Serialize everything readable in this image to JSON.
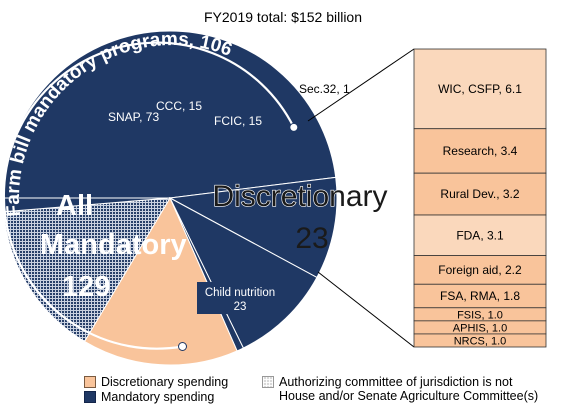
{
  "chart_data": {
    "type": "pie",
    "title": "FY2019 total: $152 billion",
    "colors": {
      "mandatory": "#1f3864",
      "discretionary": "#f9c49b",
      "hatch_background": "#d9d9d9"
    },
    "pie": {
      "slices": [
        {
          "name": "SNAP",
          "value": 73,
          "label": "SNAP, 73",
          "category": "mandatory",
          "hatched": false
        },
        {
          "name": "CCC",
          "value": 15,
          "label": "CCC, 15",
          "category": "mandatory",
          "hatched": false
        },
        {
          "name": "FCIC",
          "value": 15,
          "label": "FCIC, 15",
          "category": "mandatory",
          "hatched": false
        },
        {
          "name": "Sec.32",
          "value": 1,
          "label": "Sec.32, 1",
          "category": "mandatory",
          "hatched": false
        },
        {
          "name": "Discretionary",
          "value": 23,
          "label": "Discretionary",
          "value_label": "23",
          "category": "discretionary",
          "hatched": false
        },
        {
          "name": "Child nutrition",
          "value": 23,
          "label": "Child nutrition",
          "value_label": "23",
          "category": "mandatory",
          "hatched": true
        },
        {
          "name": "Other mandatory",
          "value": 2,
          "label": "",
          "category": "mandatory",
          "hatched": false
        }
      ]
    },
    "annotations": {
      "farm_bill": "Farm bill mandatory programs, 106",
      "all_mandatory_line1": "All",
      "all_mandatory_line2": "Mandatory",
      "all_mandatory_value": "129"
    },
    "bar": {
      "type": "stacked-bar",
      "segments": [
        {
          "label": "WIC, CSFP, 6.1",
          "value": 6.1,
          "hatched": true
        },
        {
          "label": "Research, 3.4",
          "value": 3.4,
          "hatched": false
        },
        {
          "label": "Rural Dev., 3.2",
          "value": 3.2,
          "hatched": false
        },
        {
          "label": "FDA, 3.1",
          "value": 3.1,
          "hatched": true
        },
        {
          "label": "Foreign aid, 2.2",
          "value": 2.2,
          "hatched": false
        },
        {
          "label": "FSA, RMA, 1.8",
          "value": 1.8,
          "hatched": false
        },
        {
          "label": "FSIS, 1.0",
          "value": 1.0,
          "hatched": false
        },
        {
          "label": "APHIS, 1.0",
          "value": 1.0,
          "hatched": false
        },
        {
          "label": "NRCS, 1.0",
          "value": 1.0,
          "hatched": false
        }
      ]
    },
    "legend": {
      "discretionary": "Discretionary spending",
      "mandatory": "Mandatory spending",
      "hatch_line1": "Authorizing committee of jurisdiction is not",
      "hatch_line2": "House and/or Senate Agriculture Committee(s)"
    }
  }
}
